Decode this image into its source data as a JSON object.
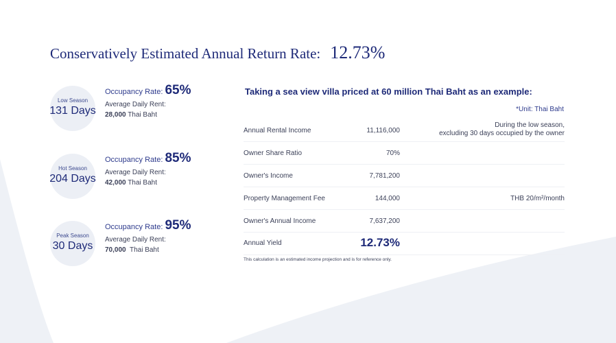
{
  "title": {
    "text": "Conservatively Estimated Annual Return Rate:",
    "value": "12.73%"
  },
  "seasons": [
    {
      "name": "Low Season",
      "days": "131 Days",
      "occupancy_label": "Occupancy Rate:",
      "occupancy": "65%",
      "rent_label": "Average Daily Rent:",
      "rent_amount": "28,000",
      "rent_unit": " Thai Baht"
    },
    {
      "name": "Hot Season",
      "days": "204 Days",
      "occupancy_label": "Occupancy Rate:",
      "occupancy": "85%",
      "rent_label": "Average Daily Rent:",
      "rent_amount": "42,000",
      "rent_unit": " Thai Baht"
    },
    {
      "name": "Peak Season",
      "days": "30 Days",
      "occupancy_label": "Occupancy Rate:",
      "occupancy": "95%",
      "rent_label": "Average Daily Rent:",
      "rent_amount": "70,000",
      "rent_unit": "  Thai Baht"
    }
  ],
  "example": {
    "title": "Taking a sea view villa priced at 60 million Thai Baht as an example:",
    "unit": "*Unit: Thai Baht",
    "rows": [
      {
        "label": "Annual Rental Income",
        "value": "11,116,000",
        "note_line1": "During the low season,",
        "note_line2": "excluding 30 days occupied by the owner"
      },
      {
        "label": "Owner Share Ratio",
        "value": "70%",
        "note_line1": "",
        "note_line2": ""
      },
      {
        "label": "Owner's Income",
        "value": "7,781,200",
        "note_line1": "",
        "note_line2": ""
      },
      {
        "label": "Property Management Fee",
        "value": "144,000",
        "note_line1": "THB 20/m²/month",
        "note_line2": ""
      },
      {
        "label": "Owner's Annual Income",
        "value": "7,637,200",
        "note_line1": "",
        "note_line2": ""
      },
      {
        "label": "Annual Yield",
        "value": "12.73%",
        "note_line1": "",
        "note_line2": ""
      }
    ],
    "footnote": "This calculation is an estimated income projection and is for reference only."
  },
  "colors": {
    "primary": "#1e2a78",
    "circle_bg": "#eceff5",
    "background_shape": "#eef1f6"
  }
}
